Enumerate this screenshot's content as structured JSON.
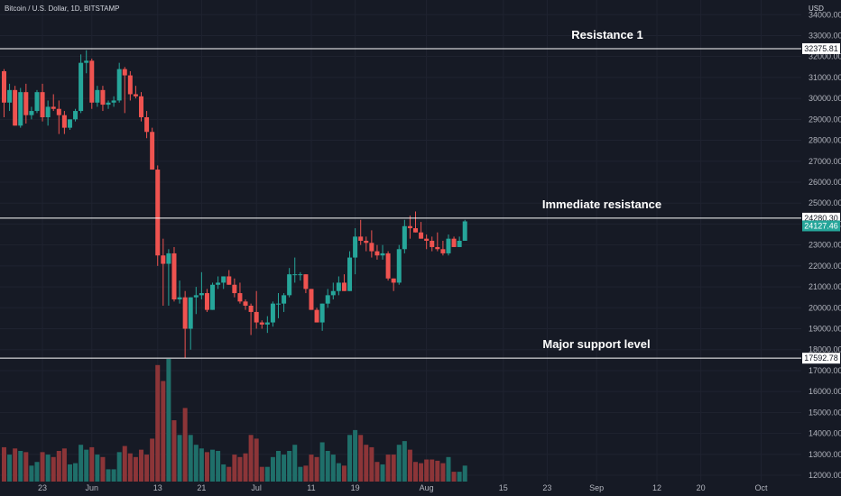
{
  "chart_data": {
    "type": "candlestick",
    "title": "Bitcoin / U.S. Dollar, 1D, BITSTAMP",
    "currency": "USD",
    "colors": {
      "up": "#26a69a",
      "down": "#ef5350",
      "vol_up": "#1f6f6a",
      "vol_down": "#8c3538",
      "background": "#161a25",
      "level_line": "#ffffff",
      "last_tag": "#26a69a"
    },
    "y_axis": {
      "ticks": [
        12000,
        13000,
        14000,
        15000,
        16000,
        17000,
        18000,
        19000,
        20000,
        21000,
        22000,
        23000,
        24000,
        25000,
        26000,
        27000,
        28000,
        29000,
        30000,
        31000,
        32000,
        33000,
        34000
      ],
      "labels": [
        "12000.00",
        "13000.00",
        "14000.00",
        "15000.00",
        "16000.00",
        "17000.00",
        "18000.00",
        "19000.00",
        "20000.00",
        "21000.00",
        "22000.00",
        "23000.00",
        "24000.00",
        "25000.00",
        "26000.00",
        "27000.00",
        "28000.00",
        "29000.00",
        "30000.00",
        "31000.00",
        "32000.00",
        "33000.00",
        "34000.00"
      ],
      "range": [
        11700,
        34700
      ]
    },
    "x_axis": {
      "start": "2022-05-16",
      "end": "2022-10-01",
      "labels": [
        {
          "date": "2022-05-23",
          "label": "23"
        },
        {
          "date": "2022-06-01",
          "label": "Jun"
        },
        {
          "date": "2022-06-13",
          "label": "13"
        },
        {
          "date": "2022-06-21",
          "label": "21"
        },
        {
          "date": "2022-07-01",
          "label": "Jul"
        },
        {
          "date": "2022-07-11",
          "label": "11"
        },
        {
          "date": "2022-07-19",
          "label": "19"
        },
        {
          "date": "2022-08-01",
          "label": "Aug"
        },
        {
          "date": "2022-08-15",
          "label": "15"
        },
        {
          "date": "2022-08-23",
          "label": "23"
        },
        {
          "date": "2022-09-01",
          "label": "Sep"
        },
        {
          "date": "2022-09-12",
          "label": "12"
        },
        {
          "date": "2022-09-20",
          "label": "20"
        },
        {
          "date": "2022-10-01",
          "label": "Oct"
        }
      ]
    },
    "levels": [
      {
        "value": 32375.81,
        "label": "32375.81",
        "annotation": "Resistance 1"
      },
      {
        "value": 24280.3,
        "label": "24280.30",
        "annotation": "Immediate resistance"
      },
      {
        "value": 17592.78,
        "label": "17592.78",
        "annotation": "Major support level"
      }
    ],
    "last_price": {
      "value": 24127.46,
      "label": "24127.46"
    },
    "candles": [
      {
        "date": "2022-05-16",
        "o": 31300,
        "h": 31400,
        "l": 29100,
        "c": 29800,
        "v": 0.28
      },
      {
        "date": "2022-05-17",
        "o": 29800,
        "h": 30700,
        "l": 29400,
        "c": 30400,
        "v": 0.22
      },
      {
        "date": "2022-05-18",
        "o": 30400,
        "h": 30600,
        "l": 28700,
        "c": 28700,
        "v": 0.27
      },
      {
        "date": "2022-05-19",
        "o": 28700,
        "h": 30500,
        "l": 28600,
        "c": 30300,
        "v": 0.25
      },
      {
        "date": "2022-05-20",
        "o": 30300,
        "h": 30700,
        "l": 28800,
        "c": 29200,
        "v": 0.24
      },
      {
        "date": "2022-05-21",
        "o": 29200,
        "h": 29600,
        "l": 29000,
        "c": 29400,
        "v": 0.13
      },
      {
        "date": "2022-05-22",
        "o": 29400,
        "h": 30400,
        "l": 29300,
        "c": 30300,
        "v": 0.16
      },
      {
        "date": "2022-05-23",
        "o": 30300,
        "h": 30700,
        "l": 28900,
        "c": 29100,
        "v": 0.24
      },
      {
        "date": "2022-05-24",
        "o": 29100,
        "h": 29900,
        "l": 28700,
        "c": 29600,
        "v": 0.22
      },
      {
        "date": "2022-05-25",
        "o": 29600,
        "h": 30200,
        "l": 29400,
        "c": 29500,
        "v": 0.2
      },
      {
        "date": "2022-05-26",
        "o": 29500,
        "h": 29900,
        "l": 28300,
        "c": 29200,
        "v": 0.25
      },
      {
        "date": "2022-05-27",
        "o": 29200,
        "h": 29400,
        "l": 28300,
        "c": 28600,
        "v": 0.27
      },
      {
        "date": "2022-05-28",
        "o": 28600,
        "h": 29000,
        "l": 28500,
        "c": 29000,
        "v": 0.14
      },
      {
        "date": "2022-05-29",
        "o": 29000,
        "h": 29500,
        "l": 28900,
        "c": 29400,
        "v": 0.15
      },
      {
        "date": "2022-05-30",
        "o": 29400,
        "h": 32100,
        "l": 29300,
        "c": 31700,
        "v": 0.3
      },
      {
        "date": "2022-05-31",
        "o": 31700,
        "h": 32300,
        "l": 31200,
        "c": 31800,
        "v": 0.26
      },
      {
        "date": "2022-06-01",
        "o": 31800,
        "h": 31900,
        "l": 29500,
        "c": 29800,
        "v": 0.28
      },
      {
        "date": "2022-06-02",
        "o": 29800,
        "h": 30600,
        "l": 29600,
        "c": 30400,
        "v": 0.22
      },
      {
        "date": "2022-06-03",
        "o": 30400,
        "h": 30600,
        "l": 29400,
        "c": 29700,
        "v": 0.2
      },
      {
        "date": "2022-06-04",
        "o": 29700,
        "h": 29900,
        "l": 29500,
        "c": 29800,
        "v": 0.1
      },
      {
        "date": "2022-06-05",
        "o": 29800,
        "h": 30100,
        "l": 29600,
        "c": 29900,
        "v": 0.1
      },
      {
        "date": "2022-06-06",
        "o": 29900,
        "h": 31700,
        "l": 29800,
        "c": 31400,
        "v": 0.24
      },
      {
        "date": "2022-06-07",
        "o": 31400,
        "h": 31500,
        "l": 29300,
        "c": 31100,
        "v": 0.29
      },
      {
        "date": "2022-06-08",
        "o": 31100,
        "h": 31300,
        "l": 29900,
        "c": 30200,
        "v": 0.23
      },
      {
        "date": "2022-06-09",
        "o": 30200,
        "h": 30600,
        "l": 30000,
        "c": 30100,
        "v": 0.2
      },
      {
        "date": "2022-06-10",
        "o": 30100,
        "h": 30300,
        "l": 28900,
        "c": 29100,
        "v": 0.26
      },
      {
        "date": "2022-06-11",
        "o": 29100,
        "h": 29400,
        "l": 28100,
        "c": 28400,
        "v": 0.22
      },
      {
        "date": "2022-06-12",
        "o": 28400,
        "h": 28600,
        "l": 26600,
        "c": 26600,
        "v": 0.35
      },
      {
        "date": "2022-06-13",
        "o": 26600,
        "h": 26800,
        "l": 22000,
        "c": 22500,
        "v": 0.95
      },
      {
        "date": "2022-06-14",
        "o": 22500,
        "h": 23300,
        "l": 20100,
        "c": 22100,
        "v": 0.82
      },
      {
        "date": "2022-06-15",
        "o": 22100,
        "h": 22800,
        "l": 20100,
        "c": 22600,
        "v": 1.0
      },
      {
        "date": "2022-06-16",
        "o": 22600,
        "h": 22900,
        "l": 20300,
        "c": 20400,
        "v": 0.5
      },
      {
        "date": "2022-06-17",
        "o": 20400,
        "h": 21300,
        "l": 20200,
        "c": 20500,
        "v": 0.38
      },
      {
        "date": "2022-06-18",
        "o": 20500,
        "h": 20800,
        "l": 17600,
        "c": 19000,
        "v": 0.6
      },
      {
        "date": "2022-06-19",
        "o": 19000,
        "h": 20500,
        "l": 18000,
        "c": 20500,
        "v": 0.38
      },
      {
        "date": "2022-06-20",
        "o": 20500,
        "h": 21000,
        "l": 19700,
        "c": 20600,
        "v": 0.3
      },
      {
        "date": "2022-06-21",
        "o": 20600,
        "h": 21700,
        "l": 20400,
        "c": 20700,
        "v": 0.27
      },
      {
        "date": "2022-06-22",
        "o": 20700,
        "h": 20900,
        "l": 19800,
        "c": 19900,
        "v": 0.24
      },
      {
        "date": "2022-06-23",
        "o": 19900,
        "h": 21200,
        "l": 19900,
        "c": 21100,
        "v": 0.26
      },
      {
        "date": "2022-06-24",
        "o": 21100,
        "h": 21500,
        "l": 20900,
        "c": 21200,
        "v": 0.25
      },
      {
        "date": "2022-06-25",
        "o": 21200,
        "h": 21500,
        "l": 20900,
        "c": 21500,
        "v": 0.14
      },
      {
        "date": "2022-06-26",
        "o": 21500,
        "h": 21800,
        "l": 21100,
        "c": 21100,
        "v": 0.12
      },
      {
        "date": "2022-06-27",
        "o": 21100,
        "h": 21400,
        "l": 20500,
        "c": 20700,
        "v": 0.22
      },
      {
        "date": "2022-06-28",
        "o": 20700,
        "h": 21200,
        "l": 20200,
        "c": 20300,
        "v": 0.2
      },
      {
        "date": "2022-06-29",
        "o": 20300,
        "h": 20400,
        "l": 19900,
        "c": 20100,
        "v": 0.23
      },
      {
        "date": "2022-06-30",
        "o": 20100,
        "h": 20200,
        "l": 18700,
        "c": 19800,
        "v": 0.38
      },
      {
        "date": "2022-07-01",
        "o": 19800,
        "h": 20800,
        "l": 19000,
        "c": 19300,
        "v": 0.35
      },
      {
        "date": "2022-07-02",
        "o": 19300,
        "h": 19400,
        "l": 19000,
        "c": 19200,
        "v": 0.12
      },
      {
        "date": "2022-07-03",
        "o": 19200,
        "h": 19600,
        "l": 18800,
        "c": 19300,
        "v": 0.12
      },
      {
        "date": "2022-07-04",
        "o": 19300,
        "h": 20300,
        "l": 19100,
        "c": 20200,
        "v": 0.2
      },
      {
        "date": "2022-07-05",
        "o": 20200,
        "h": 20700,
        "l": 19500,
        "c": 20200,
        "v": 0.25
      },
      {
        "date": "2022-07-06",
        "o": 20200,
        "h": 20700,
        "l": 19800,
        "c": 20600,
        "v": 0.22
      },
      {
        "date": "2022-07-07",
        "o": 20600,
        "h": 21900,
        "l": 20500,
        "c": 21600,
        "v": 0.25
      },
      {
        "date": "2022-07-08",
        "o": 21600,
        "h": 22400,
        "l": 21200,
        "c": 21600,
        "v": 0.3
      },
      {
        "date": "2022-07-09",
        "o": 21600,
        "h": 21700,
        "l": 21300,
        "c": 21600,
        "v": 0.12
      },
      {
        "date": "2022-07-10",
        "o": 21600,
        "h": 21600,
        "l": 20700,
        "c": 20900,
        "v": 0.13
      },
      {
        "date": "2022-07-11",
        "o": 20900,
        "h": 20900,
        "l": 19900,
        "c": 19900,
        "v": 0.22
      },
      {
        "date": "2022-07-12",
        "o": 19900,
        "h": 20000,
        "l": 19300,
        "c": 19300,
        "v": 0.2
      },
      {
        "date": "2022-07-13",
        "o": 19300,
        "h": 20200,
        "l": 18900,
        "c": 20200,
        "v": 0.32
      },
      {
        "date": "2022-07-14",
        "o": 20200,
        "h": 20900,
        "l": 20000,
        "c": 20600,
        "v": 0.25
      },
      {
        "date": "2022-07-15",
        "o": 20600,
        "h": 21200,
        "l": 20400,
        "c": 20800,
        "v": 0.22
      },
      {
        "date": "2022-07-16",
        "o": 20800,
        "h": 21500,
        "l": 20600,
        "c": 21200,
        "v": 0.15
      },
      {
        "date": "2022-07-17",
        "o": 21200,
        "h": 21600,
        "l": 20800,
        "c": 20800,
        "v": 0.13
      },
      {
        "date": "2022-07-18",
        "o": 20800,
        "h": 22700,
        "l": 20800,
        "c": 22400,
        "v": 0.38
      },
      {
        "date": "2022-07-19",
        "o": 22400,
        "h": 23800,
        "l": 21600,
        "c": 23400,
        "v": 0.42
      },
      {
        "date": "2022-07-20",
        "o": 23400,
        "h": 24200,
        "l": 23000,
        "c": 23200,
        "v": 0.38
      },
      {
        "date": "2022-07-21",
        "o": 23200,
        "h": 23400,
        "l": 22700,
        "c": 23100,
        "v": 0.3
      },
      {
        "date": "2022-07-22",
        "o": 23100,
        "h": 23700,
        "l": 22400,
        "c": 22700,
        "v": 0.28
      },
      {
        "date": "2022-07-23",
        "o": 22700,
        "h": 23000,
        "l": 22300,
        "c": 22500,
        "v": 0.16
      },
      {
        "date": "2022-07-24",
        "o": 22500,
        "h": 23000,
        "l": 22300,
        "c": 22600,
        "v": 0.14
      },
      {
        "date": "2022-07-25",
        "o": 22600,
        "h": 22700,
        "l": 21300,
        "c": 21400,
        "v": 0.22
      },
      {
        "date": "2022-07-26",
        "o": 21400,
        "h": 21400,
        "l": 20800,
        "c": 21200,
        "v": 0.22
      },
      {
        "date": "2022-07-27",
        "o": 21200,
        "h": 23000,
        "l": 21100,
        "c": 22800,
        "v": 0.3
      },
      {
        "date": "2022-07-28",
        "o": 22800,
        "h": 24200,
        "l": 22600,
        "c": 23900,
        "v": 0.33
      },
      {
        "date": "2022-07-29",
        "o": 23900,
        "h": 24400,
        "l": 23300,
        "c": 23800,
        "v": 0.26
      },
      {
        "date": "2022-07-30",
        "o": 23800,
        "h": 24600,
        "l": 23600,
        "c": 23600,
        "v": 0.16
      },
      {
        "date": "2022-07-31",
        "o": 23600,
        "h": 24100,
        "l": 23300,
        "c": 23300,
        "v": 0.15
      },
      {
        "date": "2022-08-01",
        "o": 23300,
        "h": 23500,
        "l": 22800,
        "c": 23200,
        "v": 0.18
      },
      {
        "date": "2022-08-02",
        "o": 23200,
        "h": 23400,
        "l": 22700,
        "c": 22900,
        "v": 0.18
      },
      {
        "date": "2022-08-03",
        "o": 22900,
        "h": 23600,
        "l": 22700,
        "c": 22800,
        "v": 0.17
      },
      {
        "date": "2022-08-04",
        "o": 22800,
        "h": 23200,
        "l": 22500,
        "c": 22600,
        "v": 0.15
      },
      {
        "date": "2022-08-05",
        "o": 22600,
        "h": 23500,
        "l": 22500,
        "c": 23300,
        "v": 0.2
      },
      {
        "date": "2022-08-06",
        "o": 23300,
        "h": 23400,
        "l": 22900,
        "c": 22900,
        "v": 0.08
      },
      {
        "date": "2022-08-07",
        "o": 22900,
        "h": 23400,
        "l": 22900,
        "c": 23200,
        "v": 0.08
      },
      {
        "date": "2022-08-08",
        "o": 23200,
        "h": 24200,
        "l": 23200,
        "c": 24127.46,
        "v": 0.13
      }
    ]
  }
}
